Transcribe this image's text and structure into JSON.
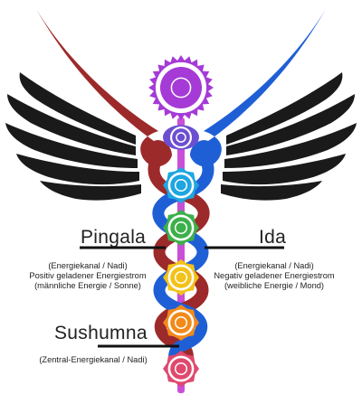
{
  "colors": {
    "wing_black": "#1a1a1a",
    "pingala_channel": "#9c2a2a",
    "ida_channel": "#1f5fd6",
    "sushumna_channel": "#c84fd6",
    "crown": "#a53ad6",
    "third_eye": "#6b4fd0",
    "throat": "#1fa6e0",
    "heart": "#3cb04a",
    "solar_plexus": "#f2c21a",
    "sacral": "#f28a1a",
    "root": "#e0496e"
  },
  "labels": {
    "pingala": {
      "title": "Pingala",
      "lines": [
        "(Energiekanal / Nadi)",
        "Positiv geladener Energiestrom",
        "(männliche Energie / Sonne)"
      ]
    },
    "ida": {
      "title": "Ida",
      "lines": [
        "(Energiekanal / Nadi)",
        "Negativ geladener Energiestrom",
        "(weibliche Energie / Mond)"
      ]
    },
    "sushumna": {
      "title": "Sushumna",
      "lines": [
        "(Zentral-Energiekanal / Nadi)"
      ]
    }
  },
  "chakras": [
    {
      "name": "crown",
      "color_key": "crown"
    },
    {
      "name": "third-eye",
      "color_key": "third_eye"
    },
    {
      "name": "throat",
      "color_key": "throat"
    },
    {
      "name": "heart",
      "color_key": "heart"
    },
    {
      "name": "solar-plexus",
      "color_key": "solar_plexus"
    },
    {
      "name": "sacral",
      "color_key": "sacral"
    },
    {
      "name": "root",
      "color_key": "root"
    }
  ]
}
